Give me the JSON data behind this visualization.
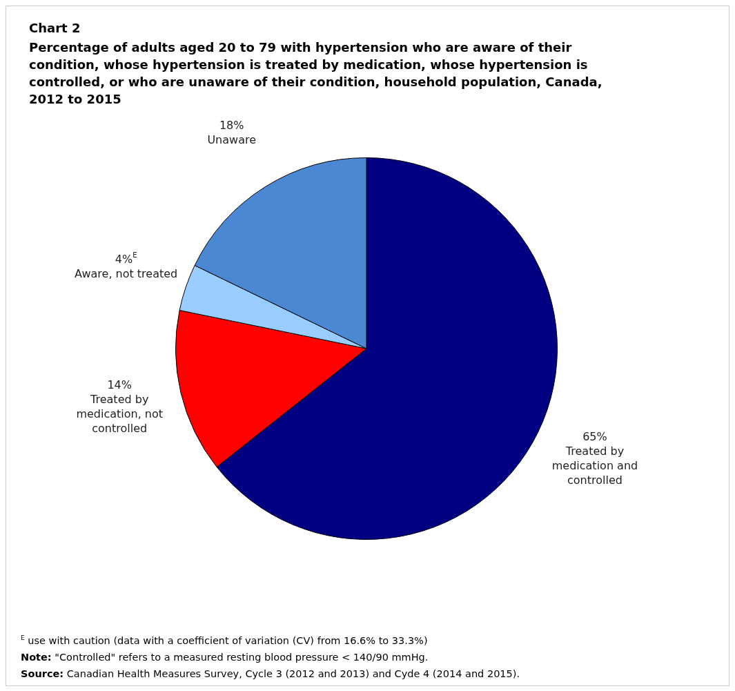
{
  "chart_data": {
    "type": "pie",
    "title": "Chart 2",
    "subtitle": "Percentage of adults aged 20 to 79 with hypertension who are aware of their condition, whose hypertension is treated by medication, whose hypertension is controlled, or who are unaware of their condition, household population, Canada, 2012 to 2015",
    "categories": [
      "Treated by medication and controlled",
      "Treated by medication, not controlled",
      "Aware, not treated",
      "Unaware"
    ],
    "values": [
      65,
      14,
      4,
      18
    ],
    "value_labels": [
      "65%",
      "14%",
      "4%$^{E}$",
      "18%"
    ],
    "colors": [
      "#000080",
      "#ff0000",
      "#99ccff",
      "#4a88d4"
    ],
    "annotations": [
      "$^{E}$ use with caution (data with a coefficient of variation (CV) from 16.6% to 33.3%)",
      "Note: \"Controlled\" refers to a measured resting blood pressure < 140/90 mmHg.",
      "Source: Canadian Health Measures Survey, Cycle 3 (2012 and 2013) and Cyde 4 (2014 and 2015)."
    ]
  }
}
